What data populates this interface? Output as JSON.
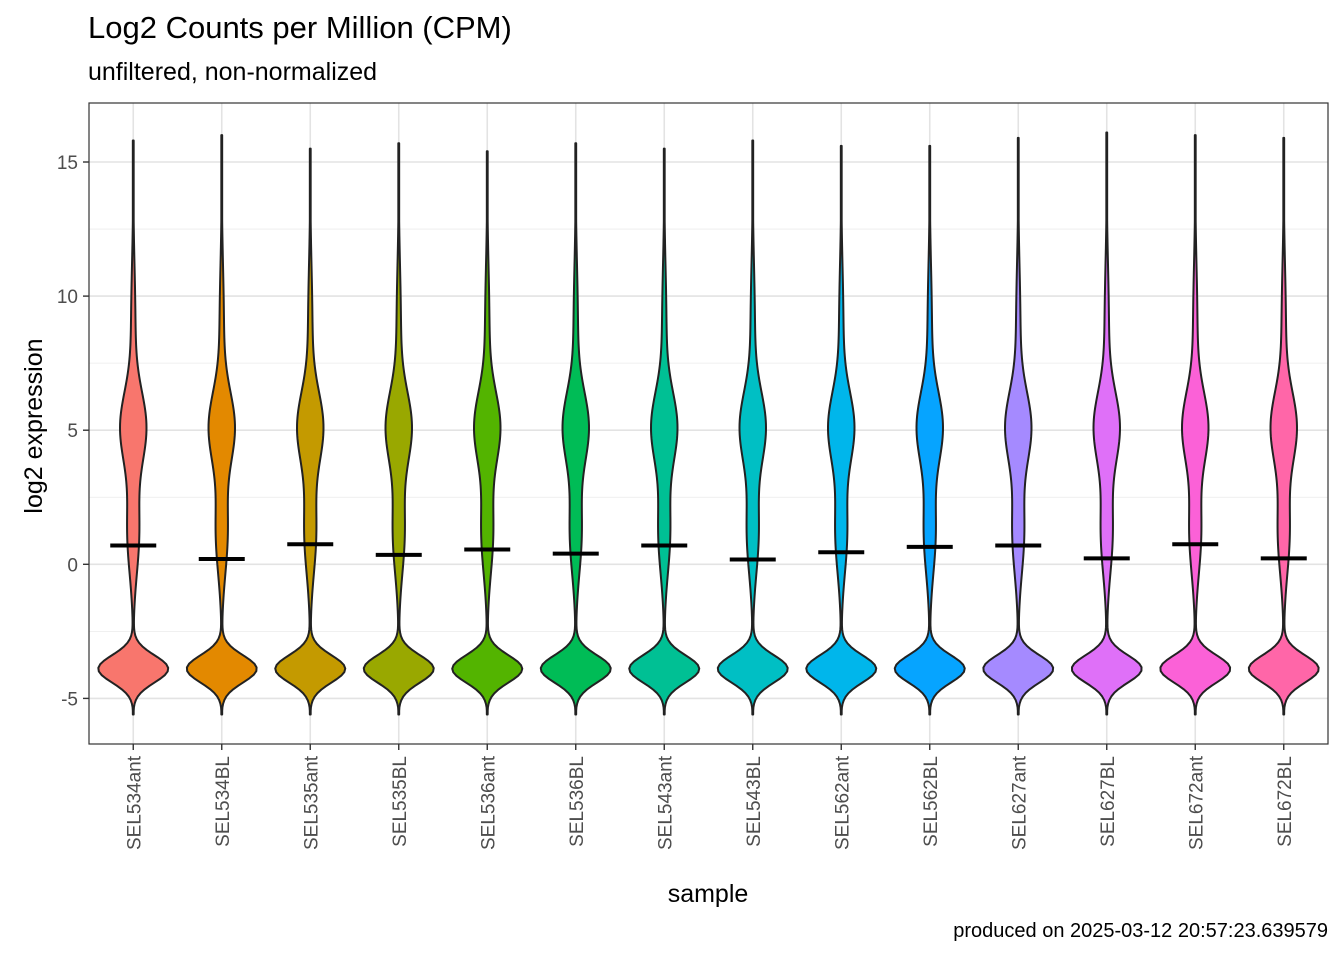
{
  "chart_data": {
    "type": "violin",
    "title": "Log2 Counts per Million (CPM)",
    "subtitle": "unfiltered, non-normalized",
    "caption": "produced on 2025-03-12 20:57:23.639579",
    "xlabel": "sample",
    "ylabel": "log2 expression",
    "ylim": [
      -6.7,
      17.2
    ],
    "yticks": [
      -5,
      0,
      5,
      10,
      15
    ],
    "ytick_labels": [
      "-5",
      "0",
      "5",
      "10",
      "15"
    ],
    "grid": true,
    "legend": "none",
    "categories": [
      "SEL534ant",
      "SEL534BL",
      "SEL535ant",
      "SEL535BL",
      "SEL536ant",
      "SEL536BL",
      "SEL543ant",
      "SEL543BL",
      "SEL562ant",
      "SEL562BL",
      "SEL627ant",
      "SEL627BL",
      "SEL672ant",
      "SEL672BL"
    ],
    "colors": [
      "#F8766D",
      "#E38900",
      "#C49A00",
      "#99A800",
      "#53B400",
      "#00BC56",
      "#00C094",
      "#00BFC4",
      "#00B6EB",
      "#06A4FF",
      "#A58AFF",
      "#DF70F8",
      "#FB61D7",
      "#FF66A8"
    ],
    "medians": [
      0.7,
      0.2,
      0.75,
      0.35,
      0.55,
      0.4,
      0.7,
      0.18,
      0.45,
      0.65,
      0.7,
      0.22,
      0.75,
      0.22
    ],
    "max": [
      15.8,
      16.0,
      15.5,
      15.7,
      15.4,
      15.7,
      15.5,
      15.8,
      15.6,
      15.6,
      15.9,
      16.1,
      16.0,
      15.9
    ],
    "min": [
      -5.6,
      -5.6,
      -5.6,
      -5.6,
      -5.6,
      -5.6,
      -5.6,
      -5.6,
      -5.6,
      -5.6,
      -5.6,
      -5.6,
      -5.6,
      -5.6
    ]
  }
}
